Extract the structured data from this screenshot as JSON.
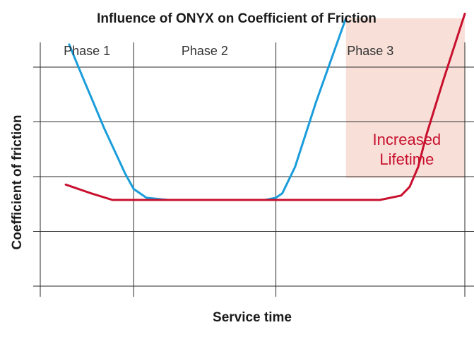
{
  "chart_data": {
    "type": "line",
    "title": "Influence of ONYX on Coefficient of Friction",
    "xlabel": "Service time",
    "ylabel": "Coefficient of friction",
    "xlim": [
      0,
      100
    ],
    "ylim": [
      0,
      10
    ],
    "grid": true,
    "phases": [
      {
        "label": "Phase 1",
        "start": 0,
        "end": 22
      },
      {
        "label": "Phase 2",
        "start": 22,
        "end": 55.5
      },
      {
        "label": "Phase 3",
        "start": 55.5,
        "end": 100
      }
    ],
    "highlight_region": {
      "label": "Increased Lifetime",
      "label_lines": [
        "Increased",
        "Lifetime"
      ],
      "x_start": 72,
      "x_end": 100,
      "y_start": 5,
      "y_end": 12.3,
      "color": "#f8e0d8",
      "text_color": "#c8102e"
    },
    "series": [
      {
        "name": "blue curve",
        "color": "#1a9ddb",
        "x": [
          6.8,
          10,
          15,
          20,
          22,
          25,
          30,
          40,
          50,
          53,
          55.5,
          57,
          60,
          65,
          72
        ],
        "y": [
          11.1,
          9.6,
          7.3,
          5.2,
          4.5,
          4.1,
          4.0,
          4.0,
          4.0,
          4.0,
          4.1,
          4.3,
          5.5,
          8.5,
          12.3
        ]
      },
      {
        "name": "red curve",
        "color": "#c8102e",
        "x": [
          6,
          12,
          17,
          25,
          40,
          60,
          80,
          85,
          87,
          89,
          91,
          95,
          100
        ],
        "y": [
          4.7,
          4.3,
          4.0,
          4.0,
          4.0,
          4.0,
          4.0,
          4.2,
          4.6,
          5.5,
          7.0,
          9.5,
          12.5
        ]
      }
    ]
  }
}
